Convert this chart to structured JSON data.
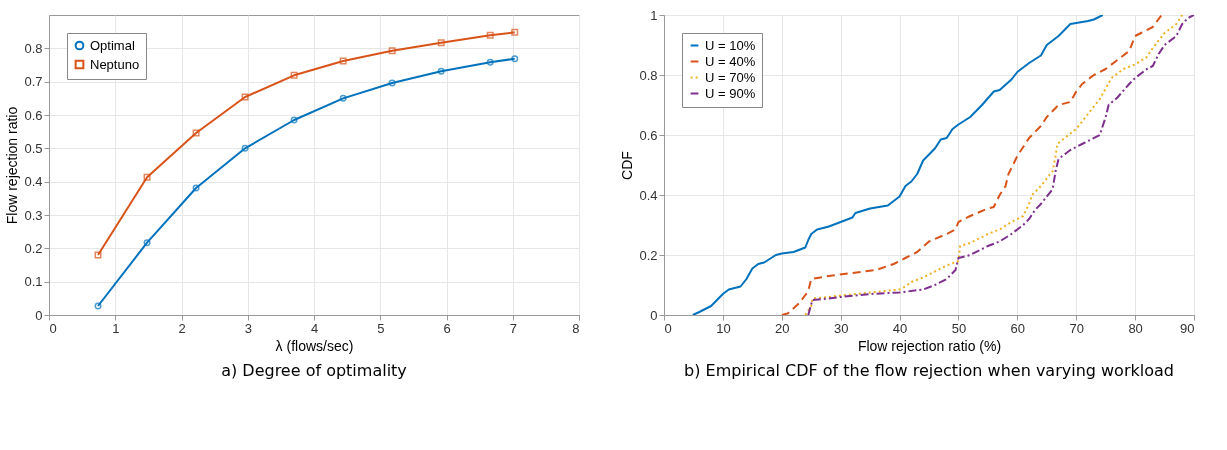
{
  "chart_data": [
    {
      "type": "line",
      "title": "a) Degree of optimality",
      "xlabel": "λ (flows/sec)",
      "ylabel": "Flow rejection ratio",
      "x": [
        0.74,
        1.48,
        2.22,
        2.96,
        3.7,
        4.44,
        5.18,
        5.92,
        6.66,
        7.03
      ],
      "series": [
        {
          "name": "Optimal",
          "color": "#0072bd",
          "marker": "circle",
          "line_style": "solid",
          "values": [
            0.027,
            0.217,
            0.381,
            0.5,
            0.585,
            0.65,
            0.696,
            0.731,
            0.758,
            0.769
          ]
        },
        {
          "name": "Neptuno",
          "color": "#d95319",
          "marker": "square",
          "line_style": "solid",
          "values": [
            0.18,
            0.413,
            0.546,
            0.654,
            0.719,
            0.762,
            0.793,
            0.817,
            0.839,
            0.848
          ]
        }
      ],
      "xlim": [
        0,
        8
      ],
      "xticks": [
        0,
        1,
        2,
        3,
        4,
        5,
        6,
        7,
        8
      ],
      "ylim": [
        0,
        0.9
      ],
      "yticks": [
        0,
        0.1,
        0.2,
        0.3,
        0.4,
        0.5,
        0.6,
        0.7,
        0.8
      ],
      "grid": true,
      "legend": "top left"
    },
    {
      "type": "line",
      "title": "b) Empirical CDF of the flow rejection when varying workload",
      "xlabel": "Flow rejection ratio (%)",
      "ylabel": "CDF",
      "series": [
        {
          "name": "U = 10%",
          "color": "#0072bd",
          "line_style": "solid",
          "x": [
            4.9,
            6,
            8,
            9,
            10,
            11,
            13,
            14,
            15,
            16,
            17,
            19,
            20,
            22,
            24,
            24.5,
            25,
            26,
            28,
            30,
            32,
            32.5,
            35,
            38,
            40,
            41,
            42,
            43,
            44,
            46,
            47,
            48,
            49,
            50,
            52,
            54,
            56,
            57,
            59,
            60,
            62,
            64,
            65,
            67,
            69,
            72,
            73,
            74.5
          ],
          "values": [
            0,
            0.01,
            0.03,
            0.05,
            0.07,
            0.085,
            0.095,
            0.12,
            0.155,
            0.17,
            0.175,
            0.2,
            0.205,
            0.21,
            0.225,
            0.25,
            0.27,
            0.285,
            0.295,
            0.31,
            0.325,
            0.34,
            0.355,
            0.365,
            0.395,
            0.43,
            0.445,
            0.47,
            0.515,
            0.555,
            0.585,
            0.59,
            0.62,
            0.635,
            0.66,
            0.7,
            0.745,
            0.75,
            0.785,
            0.81,
            0.84,
            0.865,
            0.9,
            0.93,
            0.97,
            0.98,
            0.985,
            1
          ]
        },
        {
          "name": "U = 40%",
          "color": "#d95319",
          "line_style": "dashed",
          "x": [
            20,
            21,
            23,
            24.5,
            25,
            28,
            32,
            36,
            39,
            41,
            43,
            45,
            48,
            49.5,
            50,
            52,
            55,
            56,
            57,
            58,
            58.5,
            59,
            60,
            61,
            62,
            64,
            65,
            67,
            69,
            70,
            71,
            73,
            75,
            77,
            79,
            80,
            81,
            83,
            84.5
          ],
          "values": [
            0,
            0.005,
            0.04,
            0.08,
            0.12,
            0.13,
            0.14,
            0.15,
            0.17,
            0.19,
            0.21,
            0.245,
            0.27,
            0.285,
            0.31,
            0.33,
            0.355,
            0.36,
            0.4,
            0.43,
            0.47,
            0.49,
            0.53,
            0.56,
            0.59,
            0.63,
            0.66,
            0.7,
            0.71,
            0.745,
            0.77,
            0.8,
            0.82,
            0.85,
            0.88,
            0.93,
            0.94,
            0.96,
            1
          ]
        },
        {
          "name": "U = 70%",
          "color": "#edb120",
          "line_style": "dotted",
          "x": [
            24,
            25,
            25.2,
            28,
            30,
            35,
            40,
            41,
            42,
            44,
            46,
            48,
            50,
            50.3,
            52,
            55,
            57,
            59,
            61,
            62,
            62.5,
            64,
            66,
            66.5,
            66.8,
            68,
            70,
            72,
            74,
            76,
            78,
            80,
            82,
            83,
            85,
            87,
            88
          ],
          "values": [
            0,
            0.03,
            0.055,
            0.06,
            0.065,
            0.075,
            0.085,
            0.095,
            0.11,
            0.125,
            0.145,
            0.165,
            0.18,
            0.23,
            0.24,
            0.27,
            0.285,
            0.31,
            0.33,
            0.37,
            0.4,
            0.43,
            0.48,
            0.53,
            0.57,
            0.59,
            0.62,
            0.67,
            0.72,
            0.79,
            0.82,
            0.835,
            0.86,
            0.89,
            0.94,
            0.97,
            1
          ]
        },
        {
          "name": "U = 90%",
          "color": "#7e2f8e",
          "line_style": "dashdot",
          "x": [
            24.5,
            25.2,
            28,
            30,
            35,
            40,
            44,
            46,
            48,
            49.5,
            50,
            52,
            55,
            57,
            59,
            61,
            62,
            63,
            64,
            66,
            66.5,
            67,
            69,
            71,
            72,
            74,
            75,
            75.5,
            77,
            79,
            80,
            82,
            83,
            84,
            85,
            87,
            88,
            89,
            90
          ],
          "values": [
            0,
            0.05,
            0.055,
            0.06,
            0.07,
            0.075,
            0.085,
            0.1,
            0.12,
            0.15,
            0.19,
            0.2,
            0.23,
            0.245,
            0.27,
            0.3,
            0.32,
            0.35,
            0.37,
            0.42,
            0.48,
            0.52,
            0.55,
            0.57,
            0.58,
            0.6,
            0.66,
            0.7,
            0.725,
            0.77,
            0.79,
            0.82,
            0.83,
            0.87,
            0.9,
            0.93,
            0.97,
            0.99,
            1
          ]
        }
      ],
      "xlim": [
        0,
        90
      ],
      "xticks": [
        0,
        10,
        20,
        30,
        40,
        50,
        60,
        70,
        80,
        90
      ],
      "ylim": [
        0,
        1
      ],
      "yticks": [
        0,
        0.2,
        0.4,
        0.6,
        0.8,
        1
      ],
      "grid": true,
      "legend": "top left"
    }
  ]
}
